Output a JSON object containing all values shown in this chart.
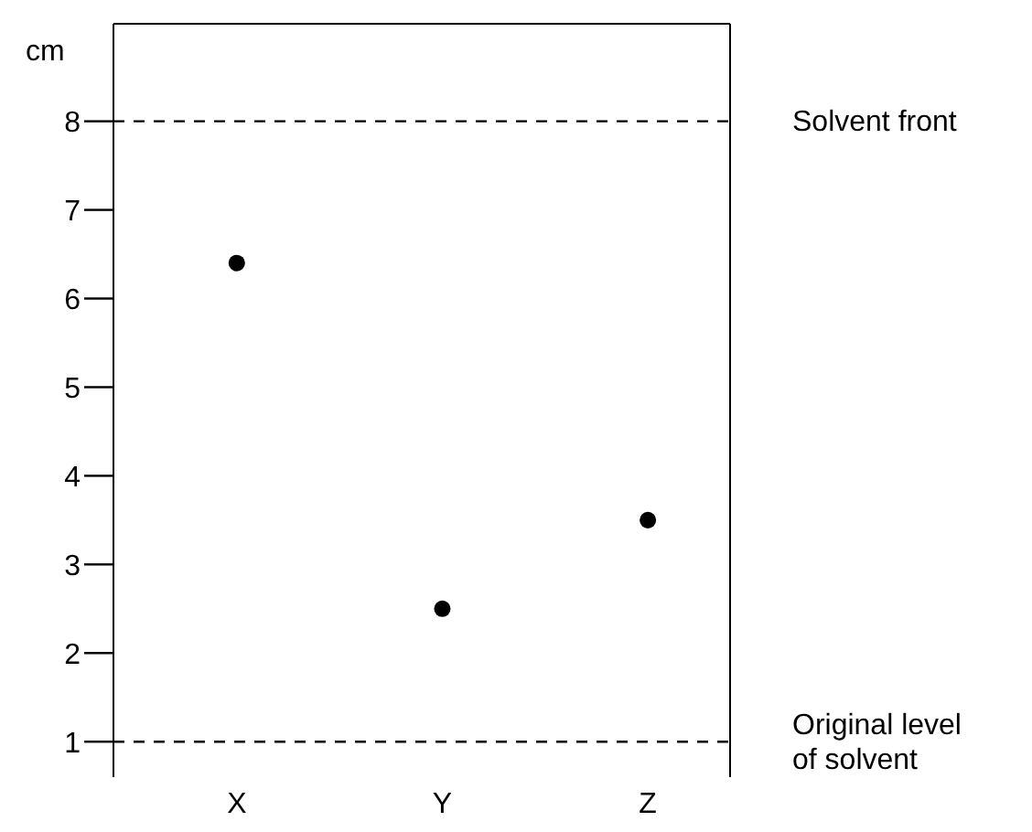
{
  "chart_data": {
    "type": "scatter",
    "ylabel": "cm",
    "categories": [
      "X",
      "Y",
      "Z"
    ],
    "series": [
      {
        "color": "#000000",
        "values": [
          6.4,
          2.5,
          3.5
        ]
      }
    ],
    "ylim": [
      0.6,
      9.1
    ],
    "yticks": [
      1,
      2,
      3,
      4,
      5,
      6,
      7,
      8
    ],
    "marker": "circle",
    "ref_lines": [
      {
        "axis": "y",
        "value": 8,
        "label": "Solvent front",
        "color": "#000000",
        "line_style": "dashed"
      },
      {
        "axis": "y",
        "value": 1,
        "label": "Original level of solvent",
        "color": "#000000",
        "line_style": "dashed"
      }
    ]
  }
}
